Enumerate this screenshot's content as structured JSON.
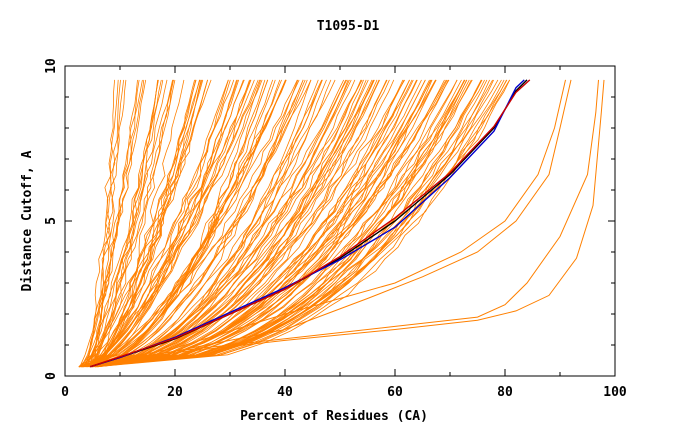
{
  "chart_data": {
    "type": "line",
    "title": "T1095-D1",
    "xlabel": "Percent of Residues (CA)",
    "ylabel": "Distance Cutoff, A",
    "xlim": [
      0,
      100
    ],
    "ylim": [
      0,
      10
    ],
    "x_ticks": [
      "0",
      "20",
      "40",
      "60",
      "80",
      "100"
    ],
    "y_ticks": [
      "0",
      "5",
      "10"
    ],
    "grid": false,
    "legend": "none",
    "colors": {
      "bulk": "#ff8000",
      "highlight_dark": "#000000",
      "highlight_blue": "#0000cc",
      "highlight_red": "#cc0000",
      "axis": "#000000"
    },
    "bulk_series_count": 150,
    "highlight_series": [
      {
        "color": "#000000",
        "x": [
          4.6,
          10,
          20,
          30,
          40,
          50,
          60,
          70,
          78,
          82,
          84
        ],
        "y": [
          0.3,
          0.6,
          1.2,
          2.0,
          2.8,
          3.8,
          5.0,
          6.5,
          8.0,
          9.2,
          10
        ]
      },
      {
        "color": "#0000cc",
        "x": [
          4.6,
          10,
          20,
          30,
          40,
          50,
          60,
          70,
          78,
          82,
          83.5
        ],
        "y": [
          0.3,
          0.6,
          1.25,
          2.05,
          2.85,
          3.75,
          4.8,
          6.4,
          7.9,
          9.3,
          10
        ]
      },
      {
        "color": "#cc0000",
        "x": [
          4.6,
          10,
          20,
          30,
          40,
          50,
          60,
          70,
          78,
          82,
          84.5
        ],
        "y": [
          0.3,
          0.62,
          1.22,
          2.0,
          2.8,
          3.85,
          5.1,
          6.55,
          8.05,
          9.15,
          10
        ]
      }
    ],
    "outlier_series": [
      {
        "x": [
          2.5,
          20,
          40,
          60,
          75,
          80,
          84,
          90,
          95,
          96.5,
          97
        ],
        "y": [
          0.3,
          0.8,
          1.2,
          1.6,
          1.9,
          2.3,
          3.0,
          4.5,
          6.5,
          8.5,
          10
        ]
      },
      {
        "x": [
          2.5,
          20,
          40,
          60,
          75,
          82,
          88,
          93,
          96,
          97.5,
          98
        ],
        "y": [
          0.3,
          0.75,
          1.15,
          1.5,
          1.8,
          2.1,
          2.6,
          3.8,
          5.5,
          8.5,
          10
        ]
      },
      {
        "x": [
          3,
          20,
          40,
          55,
          65,
          75,
          82,
          88,
          90,
          92
        ],
        "y": [
          0.3,
          0.8,
          1.5,
          2.5,
          3.2,
          4.0,
          5.0,
          6.5,
          8.0,
          10
        ]
      },
      {
        "x": [
          3,
          20,
          40,
          60,
          72,
          80,
          86,
          89,
          91
        ],
        "y": [
          0.3,
          0.9,
          2.0,
          3.0,
          4.0,
          5.0,
          6.5,
          8.0,
          10
        ]
      }
    ]
  }
}
